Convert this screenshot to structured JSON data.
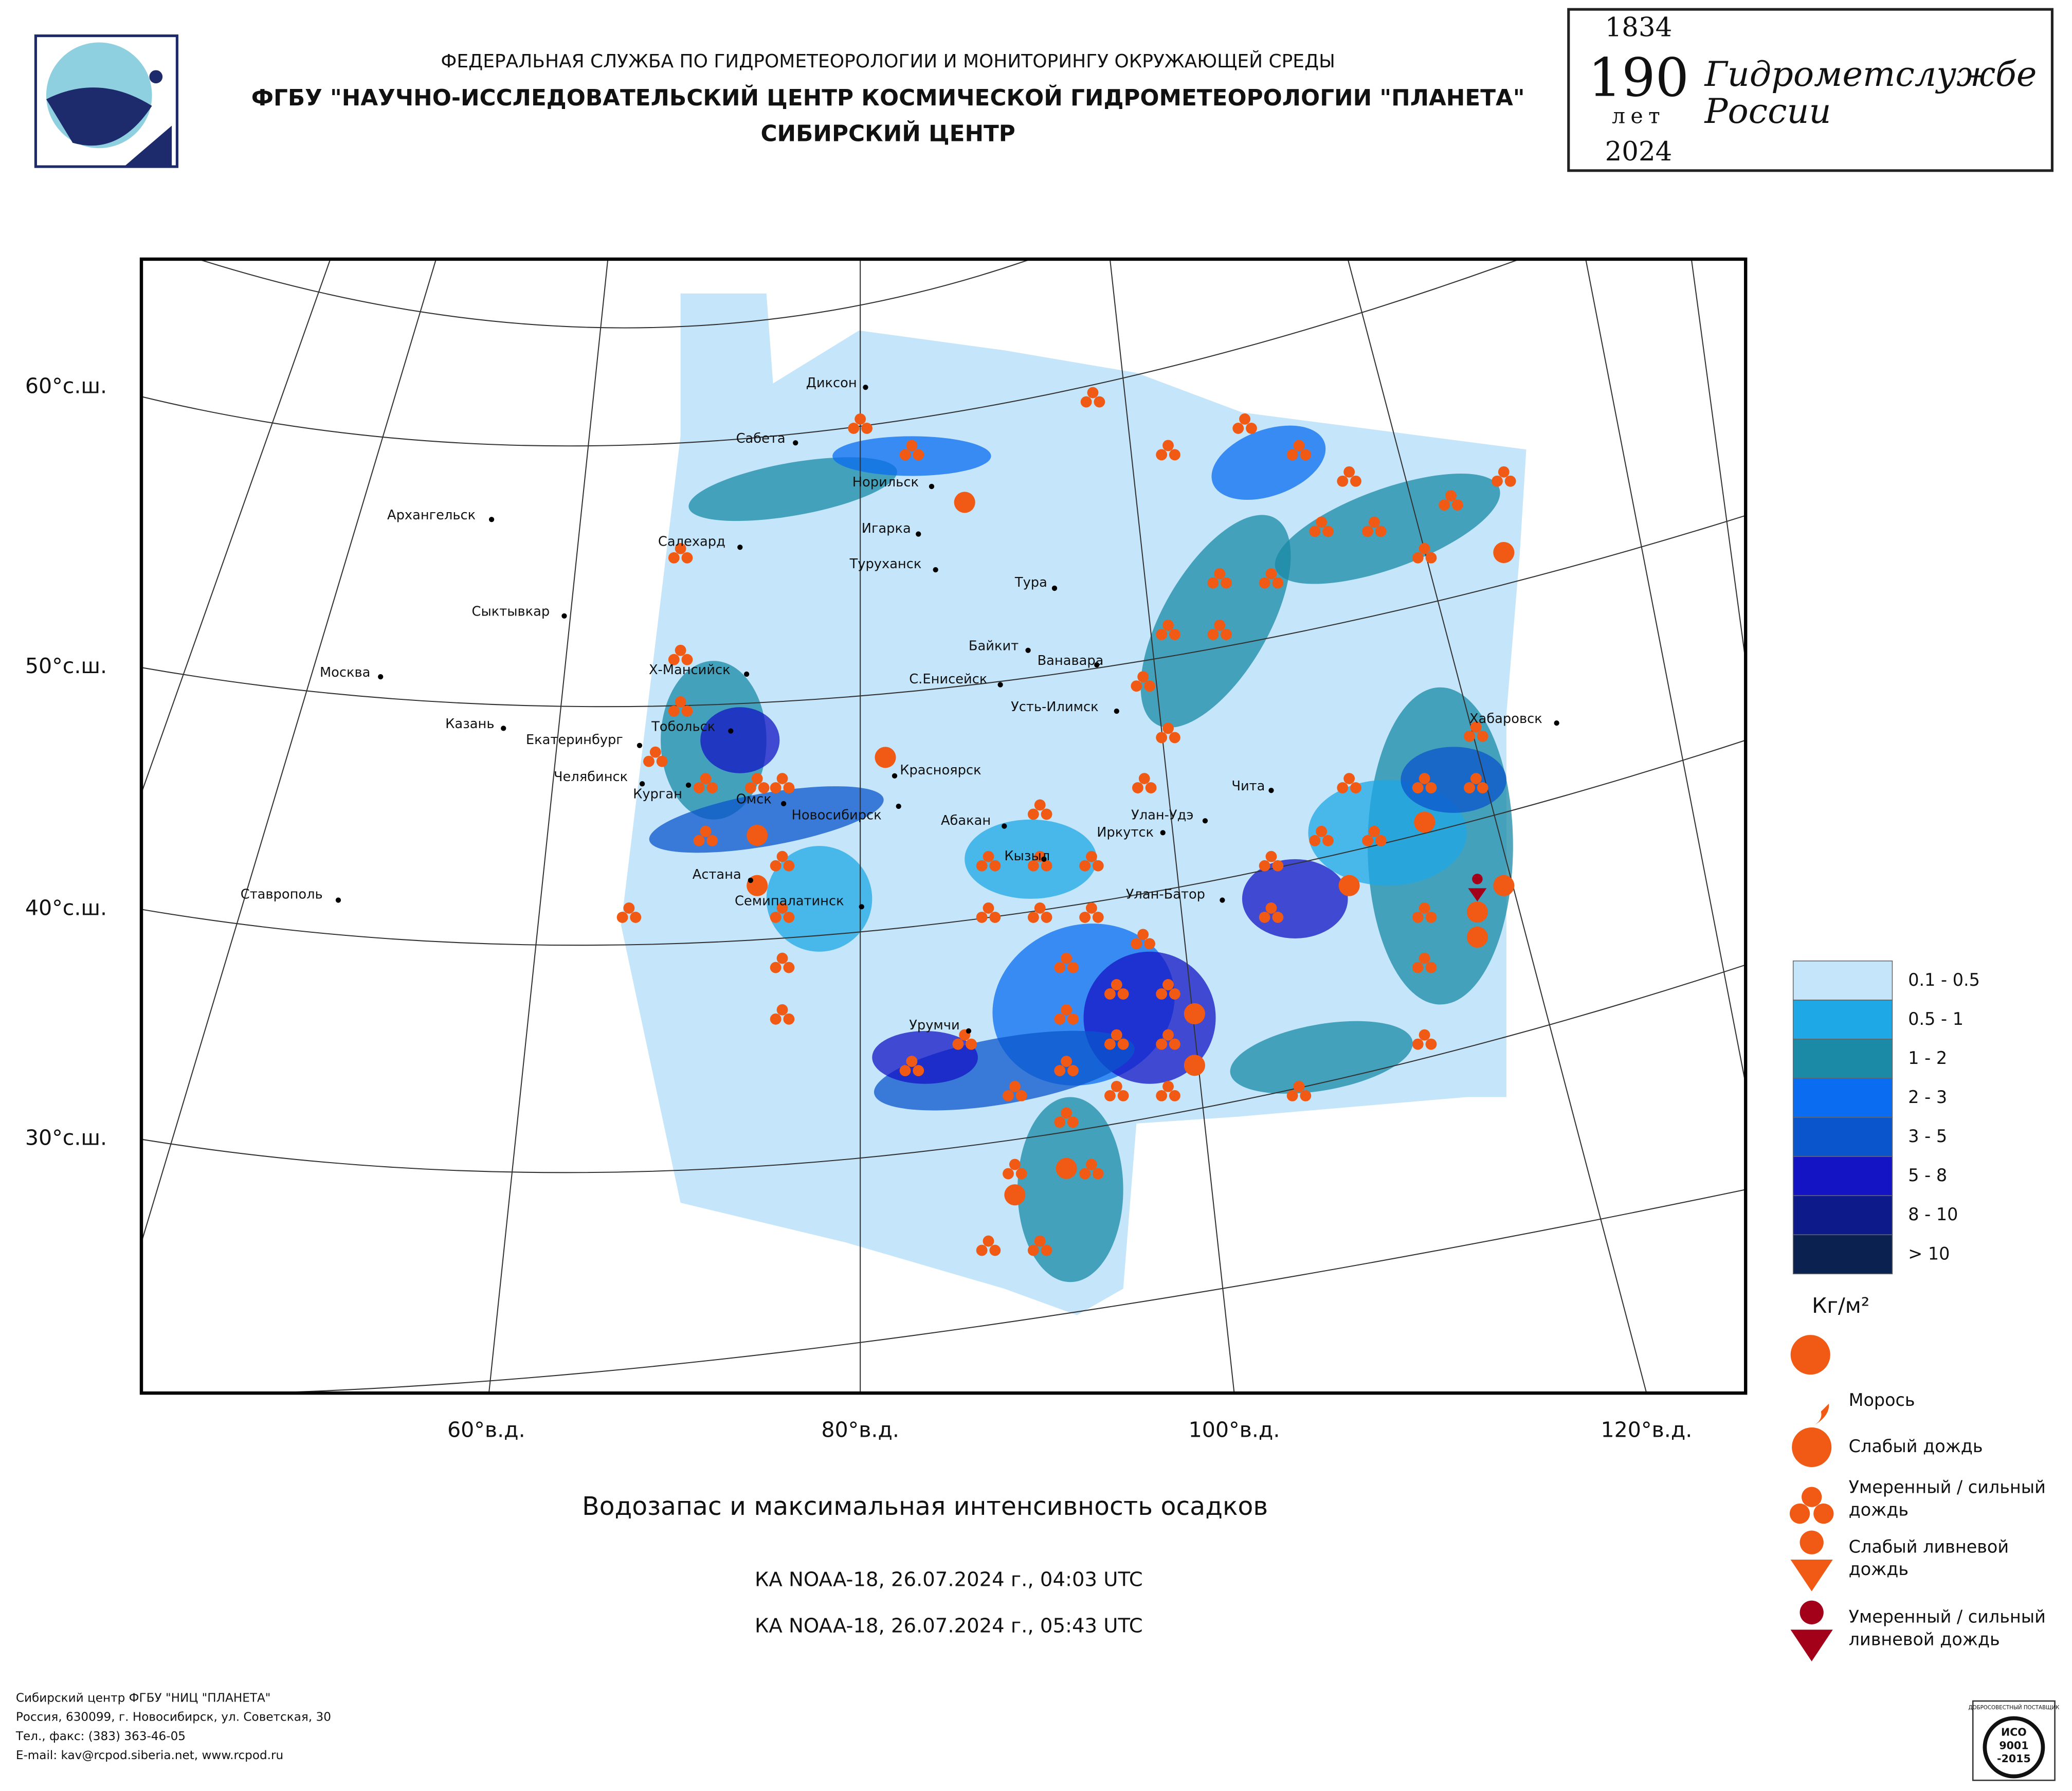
{
  "header": {
    "agency": "ФЕДЕРАЛЬНАЯ СЛУЖБА ПО ГИДРОМЕТЕОРОЛОГИИ И МОНИТОРИНГУ ОКРУЖАЮЩЕЙ СРЕДЫ",
    "institute": "ФГБУ \"НАУЧНО-ИССЛЕДОВАТЕЛЬСКИЙ ЦЕНТР КОСМИЧЕСКОЙ ГИДРОМЕТЕОРОЛОГИИ \"ПЛАНЕТА\"",
    "center": "СИБИРСКИЙ ЦЕНТР"
  },
  "anniversary": {
    "start_year": "1834",
    "number": "190",
    "unit": "лет",
    "end_year": "2024",
    "line1": "Гидрометслужбе",
    "line2": "России"
  },
  "map": {
    "lat_labels": [
      "60°с.ш.",
      "50°с.ш.",
      "40°с.ш.",
      "30°с.ш."
    ],
    "lon_labels": [
      "60°в.д.",
      "80°в.д.",
      "100°в.д.",
      "120°в.д."
    ],
    "cities": [
      "Диксон",
      "Сабета",
      "Норильск",
      "Архангельск",
      "Салехард",
      "Игарка",
      "Туруханск",
      "Сыктывкар",
      "Тура",
      "Байкит",
      "Ванавара",
      "Москва",
      "Х-Мансийск",
      "С.Енисейск",
      "Усть-Илимск",
      "Тобольск",
      "Хабаровск",
      "Казань",
      "Екатеринбург",
      "Красноярск",
      "Челябинск",
      "Курган",
      "Омск",
      "Новосибирск",
      "Чита",
      "Абакан",
      "Улан-Удэ",
      "Иркутск",
      "Кызыл",
      "Астана",
      "Семипалатинск",
      "Улан-Батор",
      "Ставрополь",
      "Урумчи"
    ]
  },
  "legend": {
    "water": [
      {
        "label": "0.1 - 0.5",
        "color": "#c4e5fa"
      },
      {
        "label": "0.5 - 1",
        "color": "#1fa8e6"
      },
      {
        "label": "1 - 2",
        "color": "#1a8aa6"
      },
      {
        "label": "2 - 3",
        "color": "#0a6cf0"
      },
      {
        "label": "3 - 5",
        "color": "#0b55cc"
      },
      {
        "label": "5 - 8",
        "color": "#1414c4"
      },
      {
        "label": "8 - 10",
        "color": "#0d1b8a"
      },
      {
        "label": "> 10",
        "color": "#0b2250"
      }
    ],
    "unit": "Кг/м²",
    "precip": [
      {
        "line1": "Морось"
      },
      {
        "line1": "Слабый дождь"
      },
      {
        "line1": "Умеренный / сильный",
        "line2": "дождь"
      },
      {
        "line1": "Слабый ливневой",
        "line2": "дождь"
      },
      {
        "line1": "Умеренный / сильный",
        "line2": "ливневой дождь"
      }
    ]
  },
  "caption": {
    "title": "Водозапас и максимальная интенсивность осадков",
    "pass1": "КА NOAA-18, 26.07.2024 г., 04:03 UTC",
    "pass2": "КА NOAA-18, 26.07.2024 г., 05:43 UTC"
  },
  "footer": [
    "Сибирский центр ФГБУ \"НИЦ \"ПЛАНЕТА\"",
    "Россия, 630099, г. Новосибирск, ул. Советская, 30",
    "Тел., факс: (383) 363-46-05",
    "E-mail: kav@rcpod.siberia.net, www.rcpod.ru"
  ],
  "badge": [
    "ДОБРОСОВЕСТНЫЙ ПОСТАВЩИК",
    "ИСО",
    "9001",
    "-2015"
  ]
}
